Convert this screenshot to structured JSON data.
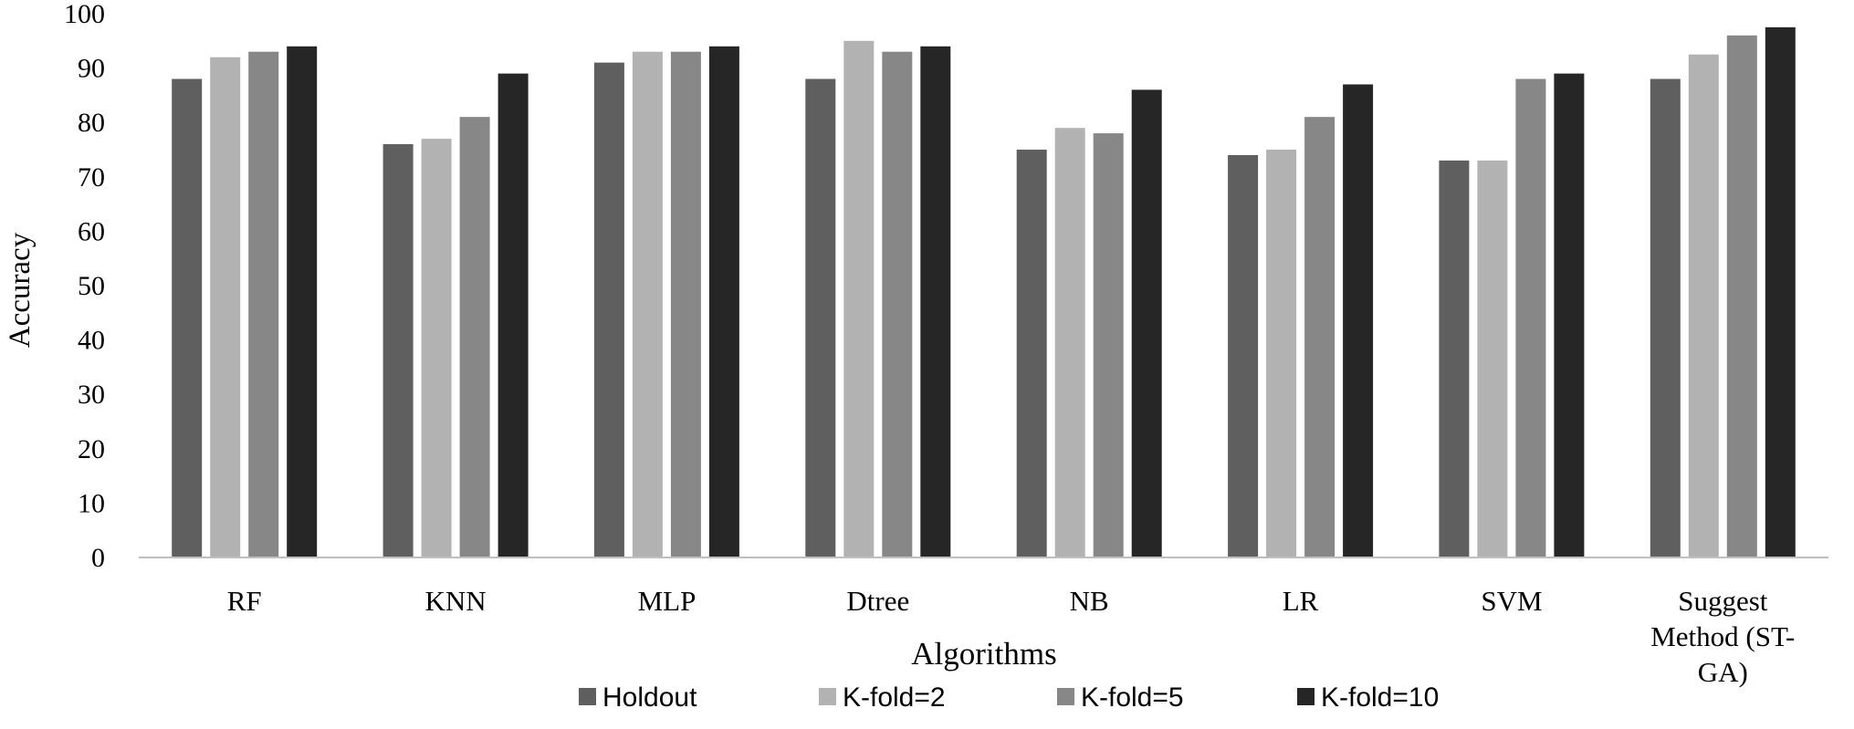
{
  "chart_data": {
    "type": "bar",
    "title": "",
    "xlabel": "Algorithms",
    "ylabel": "Accuracy",
    "ylim": [
      0,
      100
    ],
    "yticks": [
      0,
      10,
      20,
      30,
      40,
      50,
      60,
      70,
      80,
      90,
      100
    ],
    "grid": false,
    "legend_position": "bottom",
    "categories": [
      [
        "RF"
      ],
      [
        "KNN"
      ],
      [
        "MLP"
      ],
      [
        "Dtree"
      ],
      [
        "NB"
      ],
      [
        "LR"
      ],
      [
        "SVM"
      ],
      [
        "Suggest",
        "Method (ST-",
        "GA)"
      ]
    ],
    "series": [
      {
        "name": "Holdout",
        "color": "#5f5f5f",
        "values": [
          88,
          76,
          91,
          88,
          75,
          74,
          73,
          88
        ]
      },
      {
        "name": "K-fold=2",
        "color": "#b2b2b2",
        "values": [
          92,
          77,
          93,
          95,
          79,
          75,
          73,
          92.5
        ]
      },
      {
        "name": "K-fold=5",
        "color": "#878787",
        "values": [
          93,
          81,
          93,
          93,
          78,
          81,
          88,
          96
        ]
      },
      {
        "name": "K-fold=10",
        "color": "#262626",
        "values": [
          94,
          89,
          94,
          94,
          86,
          87,
          89,
          97.5
        ]
      }
    ],
    "axis_color": "#bfbfbf"
  }
}
